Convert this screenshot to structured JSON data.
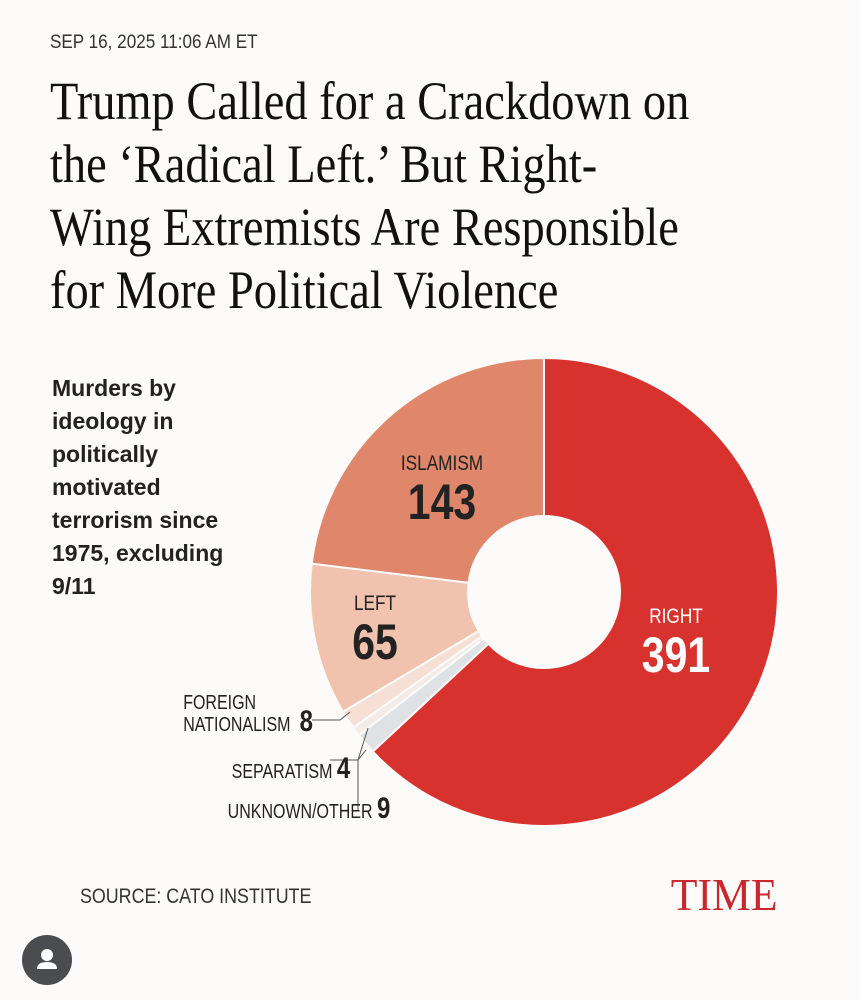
{
  "timestamp": "SEP 16, 2025 11:06 AM ET",
  "headline_lines": [
    "Trump Called for a Crackdown on",
    "the ‘Radical Left.’ But Right-",
    "Wing Extremists Are Responsible",
    "for More Political Violence"
  ],
  "chart_data": {
    "type": "pie",
    "variant": "donut",
    "title": "Murders by ideology in politically motivated terrorism since 1975, excluding 9/11",
    "slices": [
      {
        "label": "RIGHT",
        "value": 391,
        "color": "#d7322e"
      },
      {
        "label": "UNKNOWN/OTHER",
        "value": 9,
        "color": "#dfe2e5"
      },
      {
        "label": "SEPARATISM",
        "value": 4,
        "color": "#f2ebe7"
      },
      {
        "label": "FOREIGN NATIONALISM",
        "value": 8,
        "color": "#f6e0d5"
      },
      {
        "label": "LEFT",
        "value": 65,
        "color": "#f1c2ad"
      },
      {
        "label": "ISLAMISM",
        "value": 143,
        "color": "#e0866b"
      }
    ]
  },
  "source": "SOURCE: CATO INSTITUTE",
  "logo": "TIME"
}
